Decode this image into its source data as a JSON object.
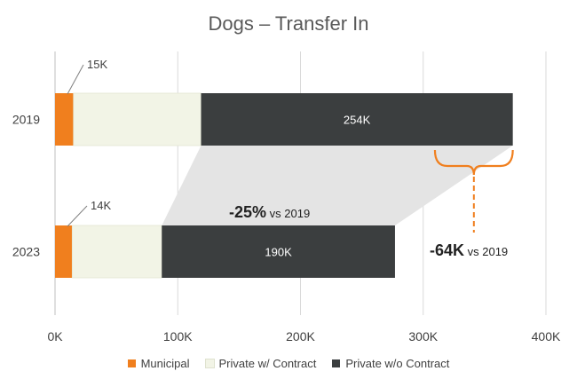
{
  "chart_data": {
    "type": "bar",
    "orientation": "horizontal",
    "stacked": true,
    "title": "Dogs – Transfer In",
    "categories": [
      "2019",
      "2023"
    ],
    "series": [
      {
        "name": "Municipal",
        "values": [
          15000,
          14000
        ],
        "color": "#f07f1e"
      },
      {
        "name": "Private w/ Contract",
        "values": [
          104000,
          73000
        ],
        "color": "#f2f4e6"
      },
      {
        "name": "Private w/o Contract",
        "values": [
          254000,
          190000
        ],
        "color": "#3b3e3f"
      }
    ],
    "data_labels": {
      "municipal": [
        "15K",
        "14K"
      ],
      "private_wo_contract": [
        "254K",
        "190K"
      ]
    },
    "xlim": [
      0,
      400000
    ],
    "xticks": [
      0,
      100000,
      200000,
      300000,
      400000
    ],
    "xtick_labels": [
      "0K",
      "100K",
      "200K",
      "300K",
      "400K"
    ],
    "grid": true,
    "legend_position": "bottom",
    "annotations": {
      "pct_change_value": "-25%",
      "pct_change_suffix": "vs 2019",
      "abs_change_value": "-64K",
      "abs_change_suffix": "vs 2019"
    },
    "accent_color": "#f07f1e"
  }
}
